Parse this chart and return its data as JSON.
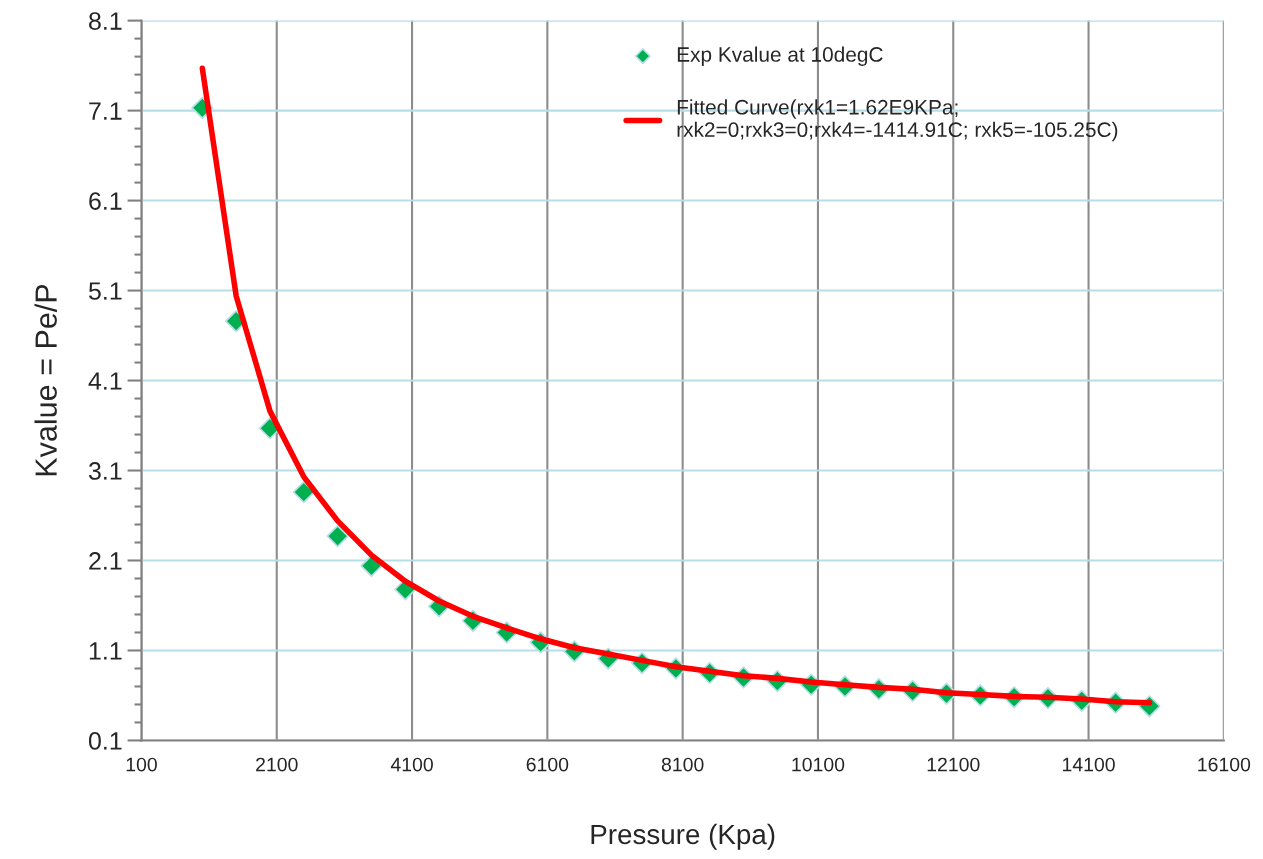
{
  "chart_data": {
    "type": "scatter",
    "xlabel": "Pressure (Kpa)",
    "ylabel": "Kvalue = Pe/P",
    "xlim": [
      100,
      16100
    ],
    "xticks": [
      100,
      2100,
      4100,
      6100,
      8100,
      10100,
      12100,
      14100,
      16100
    ],
    "ylim": [
      0.1,
      8.1
    ],
    "yticks": [
      0.1,
      1.1,
      2.1,
      3.1,
      4.1,
      5.1,
      6.1,
      7.1,
      8.1
    ],
    "grid": true,
    "legend": "top right",
    "series": [
      {
        "name": "Exp Kvalue at 10degC",
        "marker": "diamond",
        "color": "#00b050",
        "x": [
          1000,
          1500,
          2000,
          2500,
          3000,
          3500,
          4000,
          4500,
          5000,
          5500,
          6000,
          6500,
          7000,
          7500,
          8000,
          8500,
          9000,
          9500,
          10000,
          10500,
          11000,
          11500,
          12000,
          12500,
          13000,
          13500,
          14000,
          14500,
          15000
        ],
        "values": [
          7.13,
          4.76,
          3.57,
          2.86,
          2.37,
          2.04,
          1.78,
          1.59,
          1.43,
          1.3,
          1.19,
          1.09,
          1.01,
          0.96,
          0.9,
          0.85,
          0.8,
          0.76,
          0.72,
          0.7,
          0.67,
          0.65,
          0.62,
          0.6,
          0.58,
          0.57,
          0.54,
          0.52,
          0.48
        ]
      },
      {
        "name": "Fitted Curve(rxk1=1.62E9KPa;\nrxk2=0;rxk3=0;rxk4=-1414.91C; rxk5=-105.25C)",
        "type": "line",
        "marker": "none",
        "line_style": "solid",
        "color": "#ff0000",
        "x": [
          1000,
          1500,
          2000,
          2500,
          3000,
          3500,
          4000,
          4500,
          5000,
          5500,
          6000,
          6500,
          7000,
          7500,
          8000,
          8500,
          9000,
          9500,
          10000,
          10500,
          11000,
          11500,
          12000,
          12500,
          13000,
          13500,
          14000,
          14500,
          15000
        ],
        "values": [
          7.57,
          5.04,
          3.76,
          3.03,
          2.54,
          2.16,
          1.87,
          1.65,
          1.48,
          1.35,
          1.23,
          1.13,
          1.06,
          0.99,
          0.92,
          0.87,
          0.82,
          0.79,
          0.75,
          0.72,
          0.69,
          0.67,
          0.63,
          0.61,
          0.59,
          0.58,
          0.56,
          0.53,
          0.52
        ]
      }
    ]
  }
}
